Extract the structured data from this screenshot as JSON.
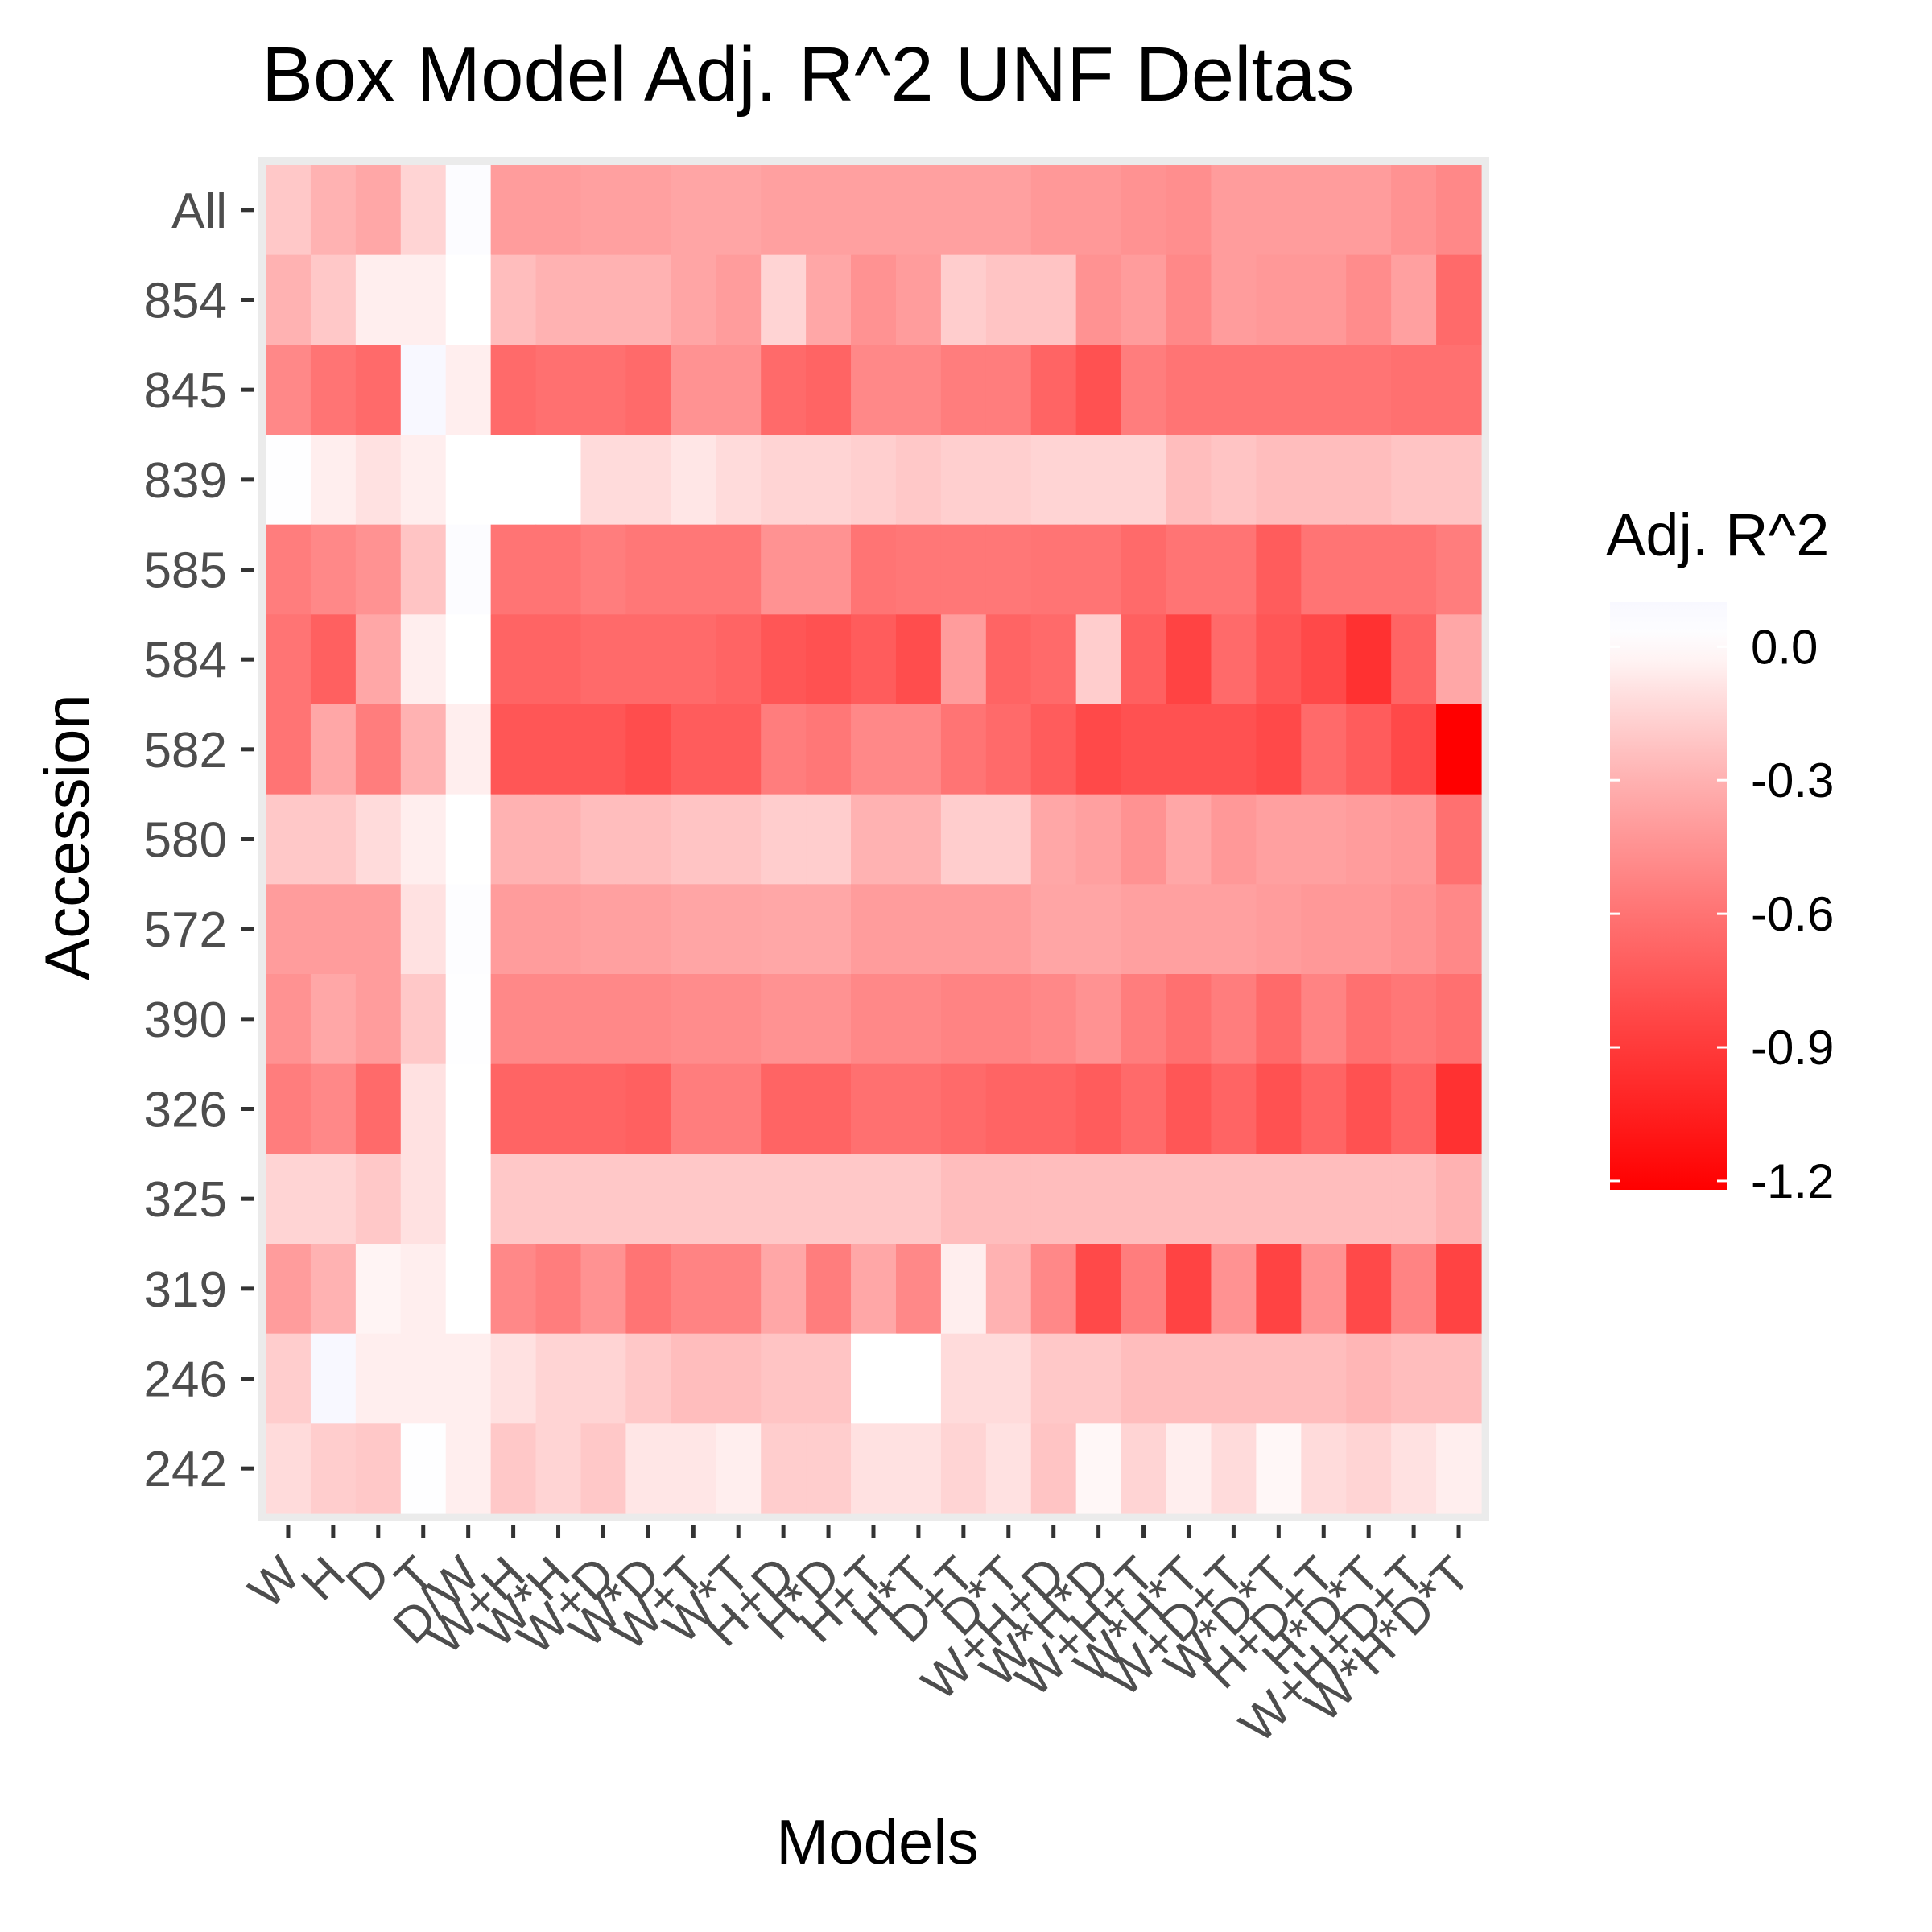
{
  "chart_data": {
    "type": "heatmap",
    "title": "Box Model Adj. R^2 UNF Deltas",
    "xlabel": "Models",
    "ylabel": "Accession",
    "x": [
      "W",
      "H",
      "D",
      "T",
      "D/W",
      "W+H",
      "W*H",
      "W+D",
      "W*D",
      "W+T",
      "W*T",
      "H+D",
      "H*D",
      "H+T",
      "H*T",
      "D+T",
      "D*T",
      "W+H+D",
      "W*H*D",
      "W+H+T",
      "W*H*T",
      "W+D+T",
      "W*D*T",
      "H+D+T",
      "H*D*T",
      "W+H+D+T",
      "W*H*D*T"
    ],
    "y": [
      "All",
      "854",
      "845",
      "839",
      "585",
      "584",
      "582",
      "580",
      "572",
      "390",
      "326",
      "325",
      "319",
      "246",
      "242"
    ],
    "values": [
      [
        -0.2,
        -0.3,
        -0.35,
        -0.15,
        0.05,
        -0.4,
        -0.4,
        -0.38,
        -0.38,
        -0.36,
        -0.36,
        -0.38,
        -0.38,
        -0.38,
        -0.38,
        -0.38,
        -0.38,
        -0.42,
        -0.42,
        -0.45,
        -0.47,
        -0.4,
        -0.4,
        -0.4,
        -0.4,
        -0.45,
        -0.5
      ],
      [
        -0.3,
        -0.2,
        -0.05,
        -0.05,
        0.0,
        -0.25,
        -0.3,
        -0.3,
        -0.3,
        -0.36,
        -0.4,
        -0.15,
        -0.35,
        -0.45,
        -0.4,
        -0.18,
        -0.22,
        -0.22,
        -0.45,
        -0.4,
        -0.5,
        -0.4,
        -0.42,
        -0.42,
        -0.48,
        -0.38,
        -0.65
      ],
      [
        -0.5,
        -0.6,
        -0.65,
        0.1,
        -0.05,
        -0.65,
        -0.62,
        -0.62,
        -0.65,
        -0.45,
        -0.45,
        -0.65,
        -0.68,
        -0.5,
        -0.5,
        -0.55,
        -0.55,
        -0.68,
        -0.78,
        -0.55,
        -0.6,
        -0.6,
        -0.6,
        -0.6,
        -0.6,
        -0.62,
        -0.62
      ],
      [
        0.02,
        -0.05,
        -0.1,
        -0.05,
        0.0,
        0.0,
        0.0,
        -0.12,
        -0.12,
        -0.08,
        -0.12,
        -0.15,
        -0.15,
        -0.17,
        -0.2,
        -0.17,
        -0.17,
        -0.15,
        -0.15,
        -0.15,
        -0.25,
        -0.22,
        -0.25,
        -0.25,
        -0.25,
        -0.22,
        -0.22
      ],
      [
        -0.55,
        -0.5,
        -0.45,
        -0.22,
        0.05,
        -0.6,
        -0.6,
        -0.55,
        -0.58,
        -0.58,
        -0.58,
        -0.45,
        -0.45,
        -0.6,
        -0.58,
        -0.58,
        -0.58,
        -0.6,
        -0.6,
        -0.65,
        -0.6,
        -0.6,
        -0.72,
        -0.6,
        -0.6,
        -0.6,
        -0.55
      ],
      [
        -0.6,
        -0.7,
        -0.35,
        -0.05,
        0.0,
        -0.68,
        -0.68,
        -0.65,
        -0.65,
        -0.65,
        -0.68,
        -0.75,
        -0.78,
        -0.72,
        -0.8,
        -0.4,
        -0.68,
        -0.65,
        -0.18,
        -0.7,
        -0.85,
        -0.65,
        -0.75,
        -0.82,
        -0.95,
        -0.68,
        -0.35
      ],
      [
        -0.6,
        -0.35,
        -0.55,
        -0.3,
        -0.05,
        -0.75,
        -0.75,
        -0.75,
        -0.8,
        -0.72,
        -0.72,
        -0.55,
        -0.58,
        -0.5,
        -0.5,
        -0.6,
        -0.65,
        -0.72,
        -0.82,
        -0.78,
        -0.78,
        -0.78,
        -0.82,
        -0.65,
        -0.72,
        -0.82,
        -1.22
      ],
      [
        -0.2,
        -0.2,
        -0.12,
        -0.05,
        0.0,
        -0.3,
        -0.3,
        -0.25,
        -0.25,
        -0.22,
        -0.22,
        -0.18,
        -0.18,
        -0.3,
        -0.3,
        -0.18,
        -0.18,
        -0.35,
        -0.38,
        -0.45,
        -0.35,
        -0.42,
        -0.38,
        -0.38,
        -0.4,
        -0.42,
        -0.62
      ],
      [
        -0.4,
        -0.4,
        -0.4,
        -0.1,
        0.03,
        -0.4,
        -0.4,
        -0.38,
        -0.38,
        -0.36,
        -0.36,
        -0.35,
        -0.35,
        -0.4,
        -0.4,
        -0.4,
        -0.4,
        -0.36,
        -0.36,
        -0.38,
        -0.38,
        -0.38,
        -0.4,
        -0.42,
        -0.42,
        -0.45,
        -0.5
      ],
      [
        -0.45,
        -0.35,
        -0.4,
        -0.2,
        0.02,
        -0.5,
        -0.5,
        -0.5,
        -0.5,
        -0.48,
        -0.48,
        -0.45,
        -0.45,
        -0.5,
        -0.5,
        -0.52,
        -0.52,
        -0.5,
        -0.45,
        -0.55,
        -0.62,
        -0.55,
        -0.65,
        -0.52,
        -0.62,
        -0.58,
        -0.62
      ],
      [
        -0.55,
        -0.5,
        -0.65,
        -0.1,
        0.0,
        -0.68,
        -0.68,
        -0.68,
        -0.7,
        -0.55,
        -0.55,
        -0.68,
        -0.68,
        -0.62,
        -0.62,
        -0.65,
        -0.68,
        -0.68,
        -0.72,
        -0.65,
        -0.75,
        -0.68,
        -0.78,
        -0.68,
        -0.78,
        -0.68,
        -0.95
      ],
      [
        -0.15,
        -0.15,
        -0.2,
        -0.1,
        0.0,
        -0.2,
        -0.2,
        -0.2,
        -0.2,
        -0.2,
        -0.2,
        -0.2,
        -0.2,
        -0.2,
        -0.2,
        -0.25,
        -0.25,
        -0.25,
        -0.25,
        -0.25,
        -0.25,
        -0.25,
        -0.25,
        -0.25,
        -0.25,
        -0.25,
        -0.3
      ],
      [
        -0.4,
        -0.3,
        -0.03,
        -0.05,
        0.0,
        -0.5,
        -0.55,
        -0.45,
        -0.6,
        -0.52,
        -0.52,
        -0.35,
        -0.55,
        -0.35,
        -0.5,
        -0.05,
        -0.3,
        -0.5,
        -0.82,
        -0.55,
        -0.85,
        -0.45,
        -0.85,
        -0.45,
        -0.82,
        -0.52,
        -0.85
      ],
      [
        -0.18,
        0.1,
        -0.05,
        -0.05,
        -0.05,
        -0.1,
        -0.15,
        -0.15,
        -0.2,
        -0.25,
        -0.25,
        -0.22,
        -0.22,
        0.0,
        0.0,
        -0.12,
        -0.12,
        -0.2,
        -0.2,
        -0.25,
        -0.25,
        -0.25,
        -0.25,
        -0.25,
        -0.28,
        -0.25,
        -0.25
      ],
      [
        -0.12,
        -0.18,
        -0.2,
        0.02,
        -0.05,
        -0.2,
        -0.15,
        -0.2,
        -0.08,
        -0.08,
        -0.05,
        -0.18,
        -0.18,
        -0.1,
        -0.1,
        -0.15,
        -0.1,
        -0.22,
        -0.02,
        -0.15,
        -0.05,
        -0.12,
        -0.02,
        -0.12,
        -0.15,
        -0.1,
        -0.05
      ]
    ],
    "color_scale": {
      "low": "#ff0000",
      "mid": "#ffffff",
      "high": "#f8f8ff",
      "limits": [
        -1.22,
        0.1
      ]
    },
    "legend": {
      "title": "Adj. R^2",
      "ticks": [
        "0.0",
        "-0.3",
        "-0.6",
        "-0.9",
        "-1.2"
      ],
      "tick_values": [
        0.0,
        -0.3,
        -0.6,
        -0.9,
        -1.2
      ],
      "position": "right"
    },
    "panel_background": "#ebebeb"
  }
}
